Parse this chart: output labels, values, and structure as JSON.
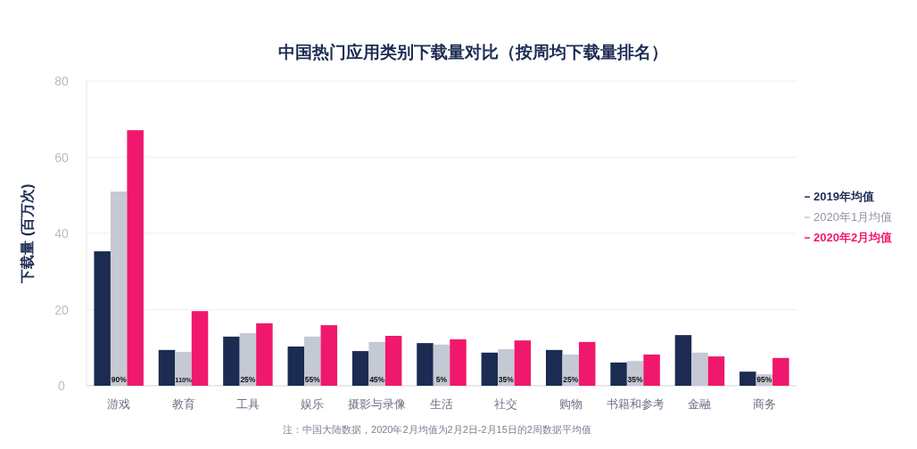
{
  "chart_data": {
    "type": "bar",
    "title": "中国热门应用类别下载量对比（按周均下载量排名）",
    "ylabel": "下载量 (百万次)",
    "categories": [
      "游戏",
      "教育",
      "工具",
      "娱乐",
      "摄影与录像",
      "生活",
      "社交",
      "购物",
      "书籍和参考",
      "金融",
      "商务"
    ],
    "series": [
      {
        "name": "2019年均值",
        "color": "#1c2b52",
        "values": [
          35.3,
          9.4,
          12.9,
          10.3,
          9.1,
          11.2,
          8.7,
          9.4,
          6.1,
          13.3,
          3.7
        ]
      },
      {
        "name": "2020年1月均值",
        "color": "#c5c9d3",
        "values": [
          51.0,
          8.9,
          13.8,
          12.9,
          11.5,
          10.8,
          9.6,
          8.2,
          6.5,
          8.7,
          3.0
        ]
      },
      {
        "name": "2020年2月均值",
        "color": "#f0186c",
        "values": [
          67.1,
          19.6,
          16.4,
          15.9,
          13.1,
          12.2,
          11.9,
          11.5,
          8.2,
          7.7,
          7.3
        ]
      }
    ],
    "ylim": [
      0,
      80
    ],
    "yticks": [
      0,
      20,
      40,
      60,
      80
    ],
    "grid": "y",
    "legend": "right",
    "annotations": [
      {
        "text": "90%",
        "x": "游戏",
        "y": 0
      },
      {
        "text": "110%",
        "x": "教育",
        "y": 0
      },
      {
        "text": "25%",
        "x": "工具",
        "y": 0
      },
      {
        "text": "55%",
        "x": "娱乐",
        "y": 0
      },
      {
        "text": "45%",
        "x": "摄影与录像",
        "y": 0
      },
      {
        "text": "5%",
        "x": "生活",
        "y": 0
      },
      {
        "text": "35%",
        "x": "社交",
        "y": 0
      },
      {
        "text": "25%",
        "x": "购物",
        "y": 0
      },
      {
        "text": "35%",
        "x": "书籍和参考",
        "y": 0
      },
      {
        "text": "95%",
        "x": "商务",
        "y": 0
      },
      "注：中国大陆数据，2020年2月均值为2月2日-2月15日的2周数据平均值"
    ]
  }
}
